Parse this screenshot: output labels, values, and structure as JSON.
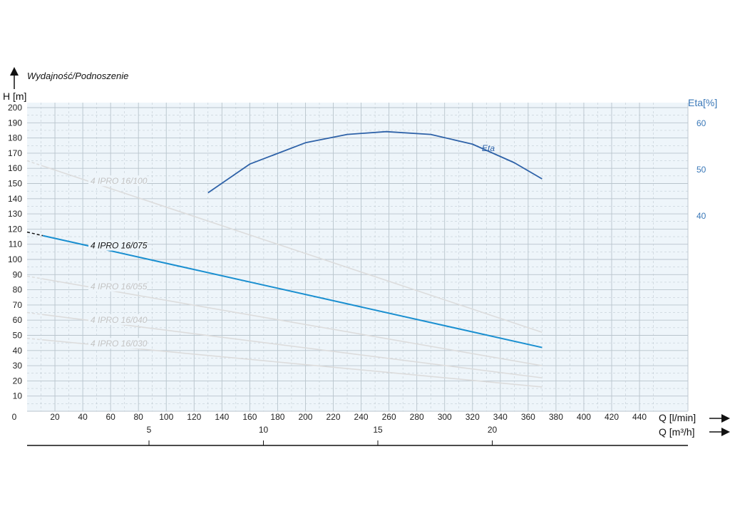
{
  "chart_data": {
    "type": "line",
    "title": "Wydajność/Podnoszenie",
    "ylabel": "H [m]",
    "ylabel_right": "Eta[%]",
    "xlabel": "Q [l/min]",
    "xlabel_secondary": "Q [m³/h]",
    "xlim": [
      0,
      470
    ],
    "ylim": [
      0,
      205
    ],
    "ylim_right": [
      0,
      60
    ],
    "x_ticks": [
      0,
      20,
      40,
      60,
      80,
      100,
      120,
      140,
      160,
      180,
      200,
      220,
      240,
      260,
      280,
      300,
      320,
      340,
      360,
      380,
      400,
      420,
      440
    ],
    "x_tick_labels": [
      "0",
      "20",
      "40",
      "60",
      "80",
      "100",
      "120",
      "140",
      "160",
      "180",
      "200",
      "220",
      "240",
      "260",
      "280",
      "300",
      "320",
      "340",
      "360",
      "380",
      "400",
      "420",
      "440"
    ],
    "y_ticks": [
      10,
      20,
      30,
      40,
      50,
      60,
      70,
      80,
      90,
      100,
      110,
      120,
      130,
      140,
      150,
      160,
      170,
      180,
      190,
      200
    ],
    "y_tick_labels": [
      "10",
      "20",
      "30",
      "40",
      "50",
      "60",
      "70",
      "80",
      "90",
      "100",
      "110",
      "120",
      "130",
      "140",
      "150",
      "160",
      "170",
      "180",
      "190",
      "200"
    ],
    "y_right_ticks": [
      40,
      50,
      60
    ],
    "y_right_tick_labels": [
      "40",
      "50",
      "60"
    ],
    "secondary_x_ticks": [
      5,
      10,
      15,
      20
    ],
    "secondary_x_tick_labels": [
      "5",
      "10",
      "15",
      "20"
    ],
    "grid": true,
    "colors": {
      "highlight": "#1a8fd0",
      "eta": "#2e62a8",
      "faded": "#dcdcdc",
      "faded_label": "#c4c4c4",
      "background": "#eef5fa",
      "grid": "#b8c4cc",
      "right_axis": "#3a78b8"
    },
    "series": [
      {
        "name": "4 IPRO 16/100",
        "style": "faded",
        "x": [
          0,
          370
        ],
        "y": [
          165,
          52
        ]
      },
      {
        "name": "4 IPRO 16/075",
        "style": "highlight",
        "x": [
          0,
          370
        ],
        "y": [
          118,
          42
        ]
      },
      {
        "name": "4 IPRO 16/055",
        "style": "faded",
        "x": [
          0,
          370
        ],
        "y": [
          89,
          30
        ]
      },
      {
        "name": "4 IPRO 16/040",
        "style": "faded",
        "x": [
          0,
          370
        ],
        "y": [
          65,
          22
        ]
      },
      {
        "name": "4 IPRO 16/030",
        "style": "faded",
        "x": [
          0,
          370
        ],
        "y": [
          48,
          16
        ]
      },
      {
        "name": "Eta",
        "style": "eta",
        "axis": "right",
        "x": [
          130,
          160,
          200,
          230,
          258,
          290,
          320,
          350,
          370
        ],
        "y": [
          45,
          51.2,
          55.8,
          57.6,
          58.2,
          57.6,
          55.5,
          51.5,
          48
        ]
      }
    ]
  }
}
